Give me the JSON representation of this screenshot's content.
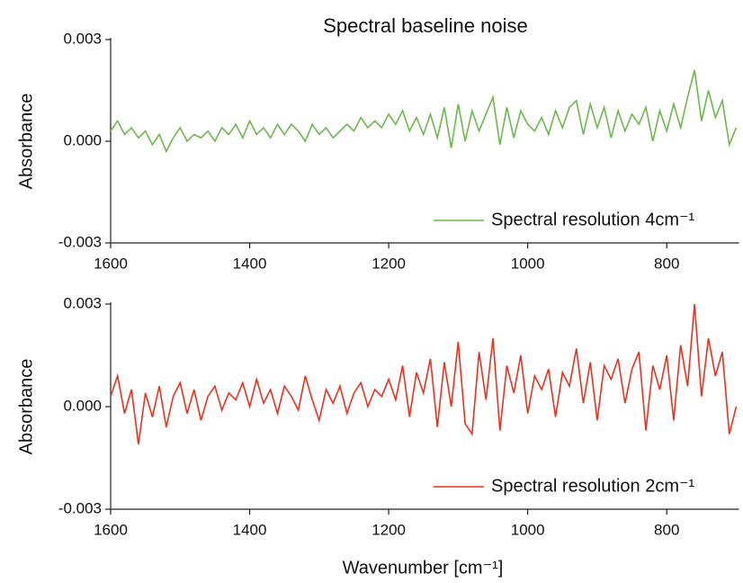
{
  "chart_data": [
    {
      "type": "line",
      "title": "Spectral baseline noise",
      "y_label": "Absorbance",
      "x": [
        1600,
        1590,
        1580,
        1570,
        1560,
        1550,
        1540,
        1530,
        1520,
        1510,
        1500,
        1490,
        1480,
        1470,
        1460,
        1450,
        1440,
        1430,
        1420,
        1410,
        1400,
        1390,
        1380,
        1370,
        1360,
        1350,
        1340,
        1330,
        1320,
        1310,
        1300,
        1290,
        1280,
        1270,
        1260,
        1250,
        1240,
        1230,
        1220,
        1210,
        1200,
        1190,
        1180,
        1170,
        1160,
        1150,
        1140,
        1130,
        1120,
        1110,
        1100,
        1090,
        1080,
        1070,
        1060,
        1050,
        1040,
        1030,
        1020,
        1010,
        1000,
        990,
        980,
        970,
        960,
        950,
        940,
        930,
        920,
        910,
        900,
        890,
        880,
        870,
        860,
        850,
        840,
        830,
        820,
        810,
        800,
        790,
        780,
        770,
        760,
        750,
        740,
        730,
        720,
        710,
        700
      ],
      "series": [
        {
          "name": "Spectral resolution 4cm⁻¹",
          "color": "#6cb84c",
          "values": [
            0.0003,
            0.0006,
            0.0002,
            0.0004,
            0.0001,
            0.0003,
            -0.0001,
            0.0002,
            -0.0003,
            0.0001,
            0.0004,
            0.0,
            0.0002,
            0.0001,
            0.0003,
            0.0,
            0.0004,
            0.0002,
            0.0005,
            0.0001,
            0.0006,
            0.0002,
            0.0004,
            0.0001,
            0.0005,
            0.0002,
            0.0005,
            0.0003,
            0.0,
            0.0005,
            0.0002,
            0.0004,
            0.0001,
            0.0003,
            0.0005,
            0.0003,
            0.0007,
            0.0004,
            0.0006,
            0.0004,
            0.0008,
            0.0005,
            0.0009,
            0.0003,
            0.0007,
            0.0002,
            0.0008,
            0.0001,
            0.001,
            -0.0002,
            0.0011,
            0.0,
            0.0009,
            0.0003,
            0.0008,
            0.0013,
            -0.0001,
            0.001,
            0.0001,
            0.0009,
            0.0005,
            0.0003,
            0.0007,
            0.0002,
            0.0009,
            0.0004,
            0.001,
            0.0012,
            0.0002,
            0.0011,
            0.0004,
            0.001,
            0.0001,
            0.0009,
            0.0003,
            0.0008,
            0.0005,
            0.001,
            0.0,
            0.0009,
            0.0003,
            0.0011,
            0.0004,
            0.0013,
            0.0021,
            0.0006,
            0.0015,
            0.0007,
            0.0012,
            -0.0001,
            0.0004
          ]
        }
      ],
      "xlim": [
        1600,
        700
      ],
      "xticks": [
        1600,
        1400,
        1200,
        1000,
        800
      ],
      "ylim": [
        -0.003,
        0.003
      ],
      "yticks": [
        -0.003,
        {
          "value": 0,
          "label": "0.000"
        },
        0.003
      ],
      "legend": "lower right"
    },
    {
      "type": "line",
      "y_label": "Absorbance",
      "x_label": "Wavenumber [cm⁻¹]",
      "x": [
        1600,
        1590,
        1580,
        1570,
        1560,
        1550,
        1540,
        1530,
        1520,
        1510,
        1500,
        1490,
        1480,
        1470,
        1460,
        1450,
        1440,
        1430,
        1420,
        1410,
        1400,
        1390,
        1380,
        1370,
        1360,
        1350,
        1340,
        1330,
        1320,
        1310,
        1300,
        1290,
        1280,
        1270,
        1260,
        1250,
        1240,
        1230,
        1220,
        1210,
        1200,
        1190,
        1180,
        1170,
        1160,
        1150,
        1140,
        1130,
        1120,
        1110,
        1100,
        1090,
        1080,
        1070,
        1060,
        1050,
        1040,
        1030,
        1020,
        1010,
        1000,
        990,
        980,
        970,
        960,
        950,
        940,
        930,
        920,
        910,
        900,
        890,
        880,
        870,
        860,
        850,
        840,
        830,
        820,
        810,
        800,
        790,
        780,
        770,
        760,
        750,
        740,
        730,
        720,
        710,
        700
      ],
      "series": [
        {
          "name": "Spectral resolution 2cm⁻¹",
          "color": "#e8321e",
          "values": [
            0.0003,
            0.0009,
            -0.0002,
            0.0005,
            -0.0011,
            0.0004,
            -0.0003,
            0.0006,
            -0.0006,
            0.0003,
            0.0007,
            -0.0002,
            0.0005,
            -0.0004,
            0.0003,
            0.0006,
            -0.0001,
            0.0004,
            0.0002,
            0.0007,
            0.0,
            0.0008,
            0.0001,
            0.0005,
            -0.0002,
            0.0006,
            0.0003,
            -0.0001,
            0.0009,
            0.0002,
            -0.0004,
            0.0005,
            0.0001,
            0.0006,
            -0.0002,
            0.0004,
            0.0007,
            0.0,
            0.0005,
            0.0003,
            0.0008,
            0.0002,
            0.0012,
            -0.0003,
            0.001,
            0.0004,
            0.0014,
            -0.0006,
            0.0013,
            0.0,
            0.0019,
            -0.0005,
            -0.0008,
            0.0016,
            0.0002,
            0.002,
            -0.0007,
            0.0012,
            0.0004,
            0.0015,
            -0.0002,
            0.0009,
            0.0005,
            0.0011,
            -0.0003,
            0.001,
            0.0006,
            0.0017,
            0.0001,
            0.0013,
            -0.0004,
            0.0012,
            0.0008,
            0.0014,
            0.0001,
            0.0011,
            0.0016,
            -0.0007,
            0.0012,
            0.0005,
            0.0015,
            -0.0004,
            0.0018,
            0.0006,
            0.003,
            0.0003,
            0.002,
            0.0009,
            0.0016,
            -0.0008,
            0.0
          ]
        }
      ],
      "xlim": [
        1600,
        700
      ],
      "xticks": [
        1600,
        1400,
        1200,
        1000,
        800
      ],
      "ylim": [
        -0.003,
        0.003
      ],
      "yticks": [
        -0.003,
        {
          "value": 0,
          "label": "0.000"
        },
        0.003
      ],
      "legend": "lower right"
    }
  ]
}
